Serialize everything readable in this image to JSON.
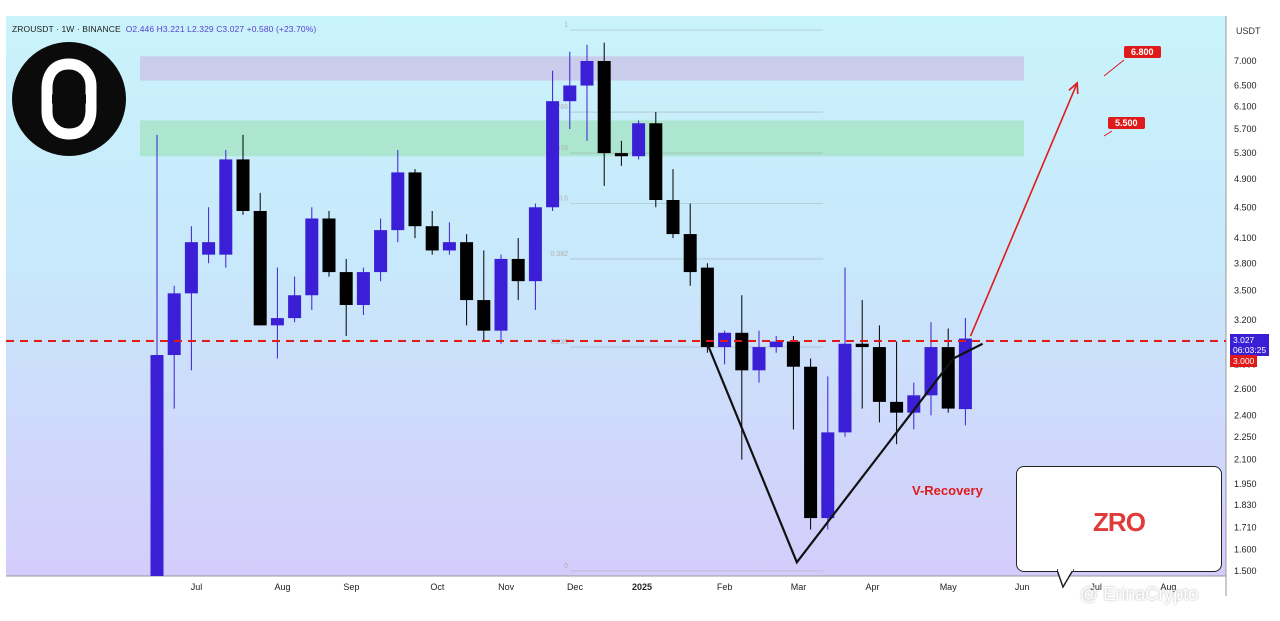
{
  "header": {
    "symbol": "ZROUSDT · 1W · BINANCE",
    "ohlc": "O2.446  H3.221  L2.329  C3.027  +0.580 (+23.70%)"
  },
  "currency": "USDT",
  "price_labels": {
    "current": "3.027",
    "countdown": "06:03:25",
    "level": "3.000"
  },
  "targets": [
    "6.800",
    "5.500"
  ],
  "annotation": "V-Recovery",
  "brand_box": "ZRO",
  "watermark": "@ ErinaCrypto",
  "colors": {
    "bull": "#3b1fd6",
    "bear": "#000000",
    "target": "#e01a1a",
    "dashed_line": "#e01a1a",
    "zone_upper": "#c9c6e6",
    "zone_lower": "#a7e3c8"
  },
  "chart_data": {
    "type": "candlestick",
    "timeframe": "1W",
    "y_scale": "log",
    "y_ticks": [
      1.5,
      1.6,
      1.71,
      1.83,
      1.95,
      2.1,
      2.25,
      2.4,
      2.6,
      2.8,
      3.2,
      3.5,
      3.8,
      4.1,
      4.5,
      4.9,
      5.3,
      5.7,
      6.1,
      6.5,
      7.0
    ],
    "y_tick_labels": [
      "1.500",
      "1.600",
      "1.710",
      "1.830",
      "1.950",
      "2.100",
      "2.250",
      "2.400",
      "2.600",
      "2.800",
      "3.200",
      "3.500",
      "3.800",
      "4.100",
      "4.500",
      "4.900",
      "5.300",
      "5.700",
      "6.100",
      "6.500",
      "7.000"
    ],
    "ylim": [
      1.47,
      7.5
    ],
    "x_labels": [
      "Jul",
      "Aug",
      "Sep",
      "Oct",
      "Nov",
      "Dec",
      "2025",
      "Feb",
      "Mar",
      "Apr",
      "May",
      "Jun",
      "Jul",
      "Aug"
    ],
    "x_label_index": [
      2.3,
      7.3,
      11.3,
      16.3,
      20.3,
      24.3,
      28.2,
      33.0,
      37.3,
      41.6,
      46.0,
      50.3,
      54.6,
      58.8
    ],
    "candles": [
      {
        "o": 1.47,
        "h": 5.6,
        "l": 1.4,
        "c": 2.88
      },
      {
        "o": 2.88,
        "h": 3.55,
        "l": 2.45,
        "c": 3.47
      },
      {
        "o": 3.47,
        "h": 4.25,
        "l": 2.75,
        "c": 4.05
      },
      {
        "o": 3.9,
        "h": 4.5,
        "l": 3.8,
        "c": 4.05
      },
      {
        "o": 3.9,
        "h": 5.35,
        "l": 3.75,
        "c": 5.2
      },
      {
        "o": 5.2,
        "h": 5.6,
        "l": 4.4,
        "c": 4.45
      },
      {
        "o": 4.45,
        "h": 4.7,
        "l": 3.15,
        "c": 3.15
      },
      {
        "o": 3.15,
        "h": 3.75,
        "l": 2.85,
        "c": 3.22
      },
      {
        "o": 3.22,
        "h": 3.65,
        "l": 3.18,
        "c": 3.45
      },
      {
        "o": 3.45,
        "h": 4.5,
        "l": 3.3,
        "c": 4.35
      },
      {
        "o": 4.35,
        "h": 4.45,
        "l": 3.65,
        "c": 3.7
      },
      {
        "o": 3.7,
        "h": 3.85,
        "l": 3.05,
        "c": 3.35
      },
      {
        "o": 3.35,
        "h": 3.75,
        "l": 3.25,
        "c": 3.7
      },
      {
        "o": 3.7,
        "h": 4.35,
        "l": 3.6,
        "c": 4.2
      },
      {
        "o": 4.2,
        "h": 5.35,
        "l": 4.05,
        "c": 5.0
      },
      {
        "o": 5.0,
        "h": 5.05,
        "l": 4.1,
        "c": 4.25
      },
      {
        "o": 4.25,
        "h": 4.45,
        "l": 3.9,
        "c": 3.95
      },
      {
        "o": 3.95,
        "h": 4.3,
        "l": 3.9,
        "c": 4.05
      },
      {
        "o": 4.05,
        "h": 4.15,
        "l": 3.15,
        "c": 3.4
      },
      {
        "o": 3.4,
        "h": 3.95,
        "l": 3.0,
        "c": 3.1
      },
      {
        "o": 3.1,
        "h": 3.9,
        "l": 2.98,
        "c": 3.85
      },
      {
        "o": 3.85,
        "h": 4.1,
        "l": 3.4,
        "c": 3.6
      },
      {
        "o": 3.6,
        "h": 4.55,
        "l": 3.3,
        "c": 4.5
      },
      {
        "o": 4.5,
        "h": 6.8,
        "l": 4.45,
        "c": 6.2
      },
      {
        "o": 6.2,
        "h": 7.2,
        "l": 5.7,
        "c": 6.5
      },
      {
        "o": 6.5,
        "h": 7.35,
        "l": 5.5,
        "c": 7.0
      },
      {
        "o": 7.0,
        "h": 7.4,
        "l": 4.8,
        "c": 5.3
      },
      {
        "o": 5.3,
        "h": 5.5,
        "l": 5.1,
        "c": 5.25
      },
      {
        "o": 5.25,
        "h": 5.85,
        "l": 5.2,
        "c": 5.8
      },
      {
        "o": 5.8,
        "h": 6.0,
        "l": 4.5,
        "c": 4.6
      },
      {
        "o": 4.6,
        "h": 5.05,
        "l": 4.1,
        "c": 4.15
      },
      {
        "o": 4.15,
        "h": 4.55,
        "l": 3.55,
        "c": 3.7
      },
      {
        "o": 3.75,
        "h": 3.8,
        "l": 2.9,
        "c": 2.95
      },
      {
        "o": 2.95,
        "h": 3.1,
        "l": 2.8,
        "c": 3.08
      },
      {
        "o": 3.08,
        "h": 3.45,
        "l": 2.1,
        "c": 2.75
      },
      {
        "o": 2.75,
        "h": 3.1,
        "l": 2.65,
        "c": 2.95
      },
      {
        "o": 2.95,
        "h": 3.05,
        "l": 2.9,
        "c": 3.0
      },
      {
        "o": 3.0,
        "h": 3.05,
        "l": 2.3,
        "c": 2.78
      },
      {
        "o": 2.78,
        "h": 2.85,
        "l": 1.7,
        "c": 1.76
      },
      {
        "o": 1.76,
        "h": 2.7,
        "l": 1.7,
        "c": 2.28
      },
      {
        "o": 2.28,
        "h": 3.75,
        "l": 2.25,
        "c": 2.98
      },
      {
        "o": 2.98,
        "h": 3.4,
        "l": 2.45,
        "c": 2.95
      },
      {
        "o": 2.95,
        "h": 3.15,
        "l": 2.35,
        "c": 2.5
      },
      {
        "o": 2.5,
        "h": 3.0,
        "l": 2.2,
        "c": 2.42
      },
      {
        "o": 2.42,
        "h": 2.65,
        "l": 2.3,
        "c": 2.55
      },
      {
        "o": 2.55,
        "h": 3.18,
        "l": 2.4,
        "c": 2.95
      },
      {
        "o": 2.95,
        "h": 3.12,
        "l": 2.42,
        "c": 2.45
      },
      {
        "o": 2.446,
        "h": 3.221,
        "l": 2.329,
        "c": 3.027
      }
    ],
    "fib_levels": [
      {
        "label": "1",
        "price": 7.75
      },
      {
        "label": "0.786",
        "price": 6.0
      },
      {
        "label": "0.618",
        "price": 5.3
      },
      {
        "label": "0.5",
        "price": 4.55
      },
      {
        "label": "0.382",
        "price": 3.85
      },
      {
        "label": "0.236",
        "price": 2.95
      },
      {
        "label": "0",
        "price": 1.5
      }
    ],
    "zones": [
      {
        "name": "upper",
        "from": 6.6,
        "to": 7.1
      },
      {
        "name": "lower",
        "from": 5.25,
        "to": 5.85
      }
    ],
    "dashed_level": 3.0,
    "v_pattern": [
      {
        "i": 32,
        "price": 2.98
      },
      {
        "i": 37.2,
        "price": 1.54
      },
      {
        "i": 46.3,
        "price": 2.85
      }
    ],
    "wedge_extension": {
      "i": 48.0,
      "price": 2.98
    },
    "target_arrow": {
      "from": {
        "i": 47.3,
        "price": 3.05
      },
      "to": {
        "i": 53.5,
        "price": 6.55
      }
    }
  }
}
